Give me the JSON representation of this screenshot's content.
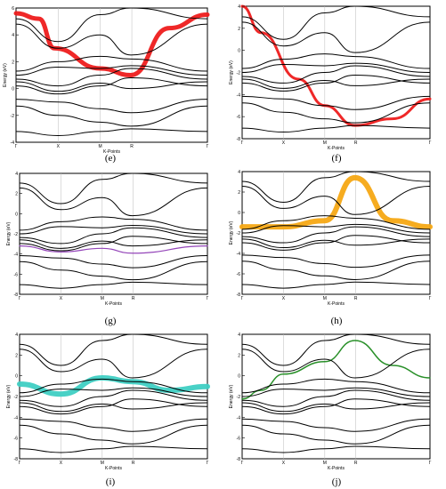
{
  "figure": {
    "y_axis_label": "Energy (eV)",
    "x_axis_label": "K-Points",
    "x_ticks": [
      "Γ",
      "X",
      "M",
      "R",
      "Γ"
    ],
    "panels": [
      {
        "label": "(e)",
        "highlight_color": "#ee1c1c",
        "y_ticks": [
          "6",
          "4",
          "2",
          "0",
          "-2",
          "-4"
        ]
      },
      {
        "label": "(f)",
        "highlight_color": "#ee1c1c",
        "y_ticks": [
          "4",
          "2",
          "0",
          "-2",
          "-4",
          "-6",
          "-8"
        ]
      },
      {
        "label": "(g)",
        "highlight_color": "#8e3bb5",
        "y_ticks": [
          "4",
          "2",
          "0",
          "-2",
          "-4",
          "-6",
          "-8"
        ]
      },
      {
        "label": "(h)",
        "highlight_color": "#f5a814",
        "y_ticks": [
          "4",
          "2",
          "0",
          "-2",
          "-4",
          "-6",
          "-8"
        ]
      },
      {
        "label": "(i)",
        "highlight_color": "#3fcfc3",
        "y_ticks": [
          "4",
          "2",
          "0",
          "-2",
          "-4",
          "-6",
          "-8"
        ]
      },
      {
        "label": "(j)",
        "highlight_color": "#1e8a1e",
        "y_ticks": [
          "4",
          "2",
          "0",
          "-2",
          "-4",
          "-6",
          "-8"
        ]
      }
    ]
  }
}
